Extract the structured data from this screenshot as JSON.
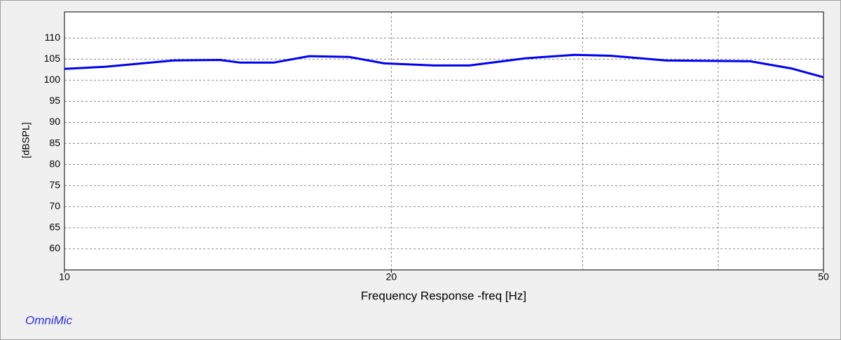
{
  "chart_data": {
    "type": "line",
    "x_label": "Frequency Response -freq [Hz]",
    "y_label": "[dBSPL]",
    "watermark": "OmniMic",
    "x_log": true,
    "xlim": [
      10,
      50
    ],
    "xticks": [
      10,
      20,
      50
    ],
    "x_grid": [
      20,
      30,
      40
    ],
    "ylim": [
      55,
      116.2
    ],
    "yticks": [
      60,
      65,
      70,
      75,
      80,
      85,
      90,
      95,
      100,
      105,
      110
    ],
    "grid": true,
    "series": [
      {
        "color": "#0000ee",
        "x": [
          10,
          10.9,
          12.6,
          13.9,
          14.5,
          15.6,
          16.8,
          18.3,
          19.7,
          21.9,
          23.6,
          26.6,
          29.5,
          31.8,
          35.8,
          42.8,
          46.7,
          50
        ],
        "values": [
          102.7,
          103.2,
          104.7,
          104.8,
          104.2,
          104.2,
          105.7,
          105.5,
          104,
          103.5,
          103.5,
          105.2,
          106,
          105.8,
          104.7,
          104.5,
          102.8,
          100.7
        ]
      }
    ]
  }
}
